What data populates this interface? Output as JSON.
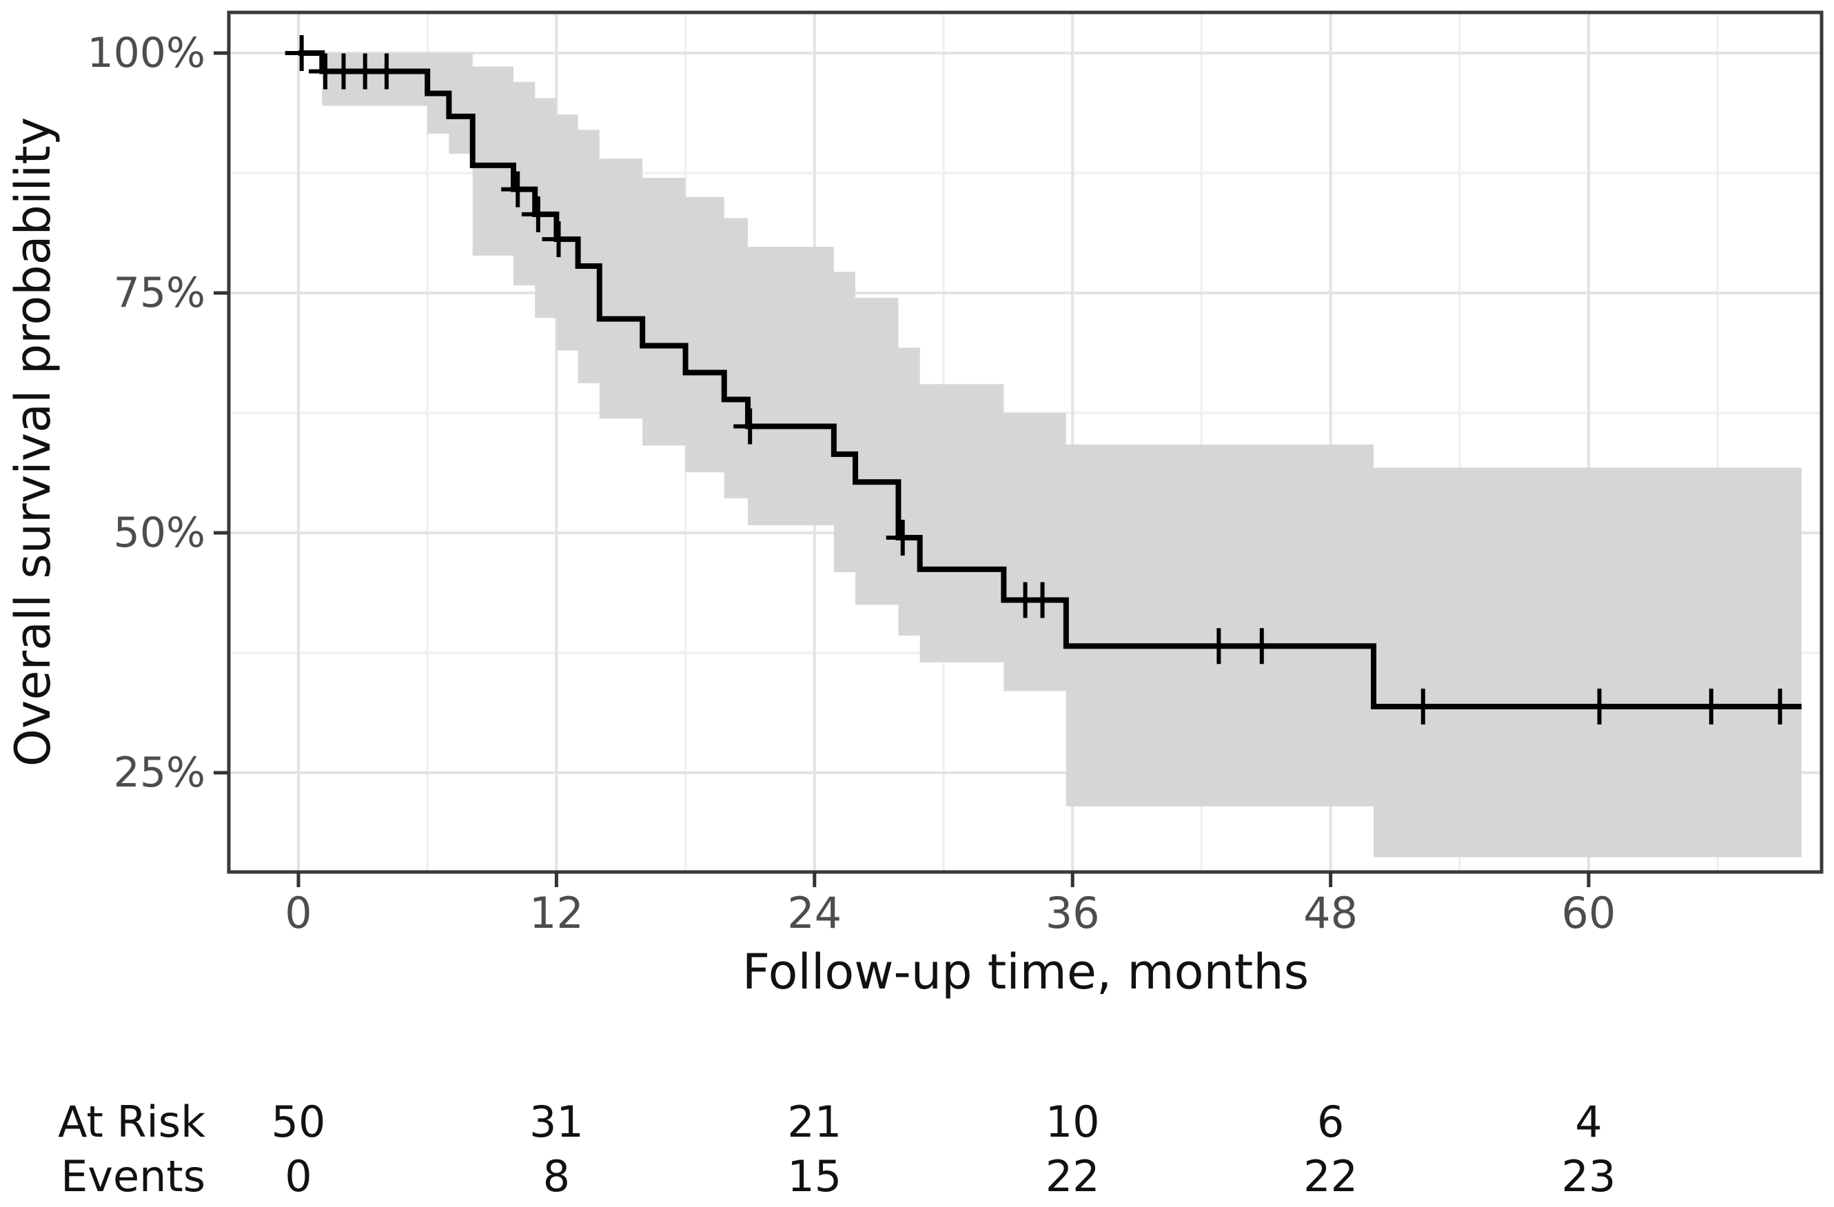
{
  "chart_data": {
    "type": "line",
    "subtype": "kaplan-meier-step",
    "title": "",
    "xlabel": "Follow-up time, months",
    "ylabel": "Overall survival probability",
    "x_axis": {
      "ticks": [
        0,
        12,
        24,
        36,
        48,
        60
      ],
      "tick_labels": [
        "0",
        "12",
        "24",
        "36",
        "48",
        "60"
      ],
      "minor_ticks": [
        6,
        18,
        30,
        42,
        54,
        66
      ],
      "range": [
        -3.2,
        70.8
      ]
    },
    "y_axis": {
      "ticks": [
        100,
        75,
        50,
        25
      ],
      "tick_labels": [
        "100%",
        "75%",
        "50%",
        "25%"
      ],
      "minor_ticks": [
        87.5,
        62.5,
        37.5
      ],
      "range": [
        14.7,
        104.3
      ],
      "unit": "percent"
    },
    "grid": {
      "major": true,
      "minor": true
    },
    "legend": {
      "visible": false
    },
    "survival_steps": [
      [
        0,
        100
      ],
      [
        1.1,
        98.1
      ],
      [
        6,
        95.8
      ],
      [
        7,
        93.4
      ],
      [
        8.1,
        88.3
      ],
      [
        10,
        85.8
      ],
      [
        11,
        83.2
      ],
      [
        12,
        80.6
      ],
      [
        13,
        77.8
      ],
      [
        14,
        72.3
      ],
      [
        16,
        69.5
      ],
      [
        18,
        66.7
      ],
      [
        19.8,
        63.9
      ],
      [
        20.9,
        61.1
      ],
      [
        24.9,
        58.2
      ],
      [
        25.9,
        55.3
      ],
      [
        27.9,
        49.5
      ],
      [
        28.9,
        46.2
      ],
      [
        32.8,
        43.0
      ],
      [
        35.7,
        38.2
      ],
      [
        50,
        31.9
      ]
    ],
    "curve_end_time": 69.9,
    "censor_marks": [
      [
        0.15,
        100
      ],
      [
        1.25,
        98.1
      ],
      [
        2.1,
        98.1
      ],
      [
        3.1,
        98.1
      ],
      [
        4.1,
        98.1
      ],
      [
        10.2,
        85.8
      ],
      [
        11.15,
        83.2
      ],
      [
        12.1,
        80.6
      ],
      [
        21.0,
        61.1
      ],
      [
        28.1,
        49.5
      ],
      [
        33.8,
        43.0
      ],
      [
        34.6,
        43.0
      ],
      [
        42.8,
        38.2
      ],
      [
        44.8,
        38.2
      ],
      [
        52.3,
        31.9
      ],
      [
        60.5,
        31.9
      ],
      [
        65.7,
        31.9
      ],
      [
        68.9,
        31.9
      ]
    ],
    "confidence_band": [
      [
        1.1,
        6.0,
        94.5,
        100
      ],
      [
        6.0,
        7.0,
        91.6,
        100
      ],
      [
        7.0,
        8.1,
        89.5,
        100
      ],
      [
        8.1,
        10.0,
        78.9,
        98.6
      ],
      [
        10.0,
        11.0,
        75.8,
        97.0
      ],
      [
        11.0,
        12.0,
        72.4,
        95.3
      ],
      [
        12.0,
        13.0,
        69.0,
        93.6
      ],
      [
        13.0,
        14.0,
        65.6,
        92.0
      ],
      [
        14.0,
        16.0,
        61.9,
        89.0
      ],
      [
        16.0,
        18.0,
        59.1,
        87.0
      ],
      [
        18.0,
        19.8,
        56.3,
        85.0
      ],
      [
        19.8,
        20.9,
        53.6,
        82.8
      ],
      [
        20.9,
        24.9,
        50.8,
        79.8
      ],
      [
        24.9,
        25.9,
        45.9,
        77.2
      ],
      [
        25.9,
        27.9,
        42.5,
        74.5
      ],
      [
        27.9,
        28.9,
        39.3,
        69.3
      ],
      [
        28.9,
        32.8,
        36.5,
        65.5
      ],
      [
        32.8,
        35.7,
        33.5,
        62.5
      ],
      [
        35.7,
        50.0,
        21.5,
        59.2
      ],
      [
        50.0,
        69.9,
        16.2,
        56.8
      ]
    ],
    "risk_table": {
      "time_points": [
        0,
        12,
        24,
        36,
        48,
        60
      ],
      "rows": [
        {
          "label": "At Risk",
          "values": [
            "50",
            "31",
            "21",
            "10",
            "6",
            "4"
          ]
        },
        {
          "label": "Events",
          "values": [
            "0",
            "8",
            "15",
            "22",
            "22",
            "23"
          ]
        }
      ]
    },
    "colors": {
      "curve": "#000000",
      "confidence_band": "#d6d6d6",
      "grid_major": "#e3e3e3",
      "grid_minor": "#f0f0f0",
      "panel_border": "#3a3a3a",
      "tick_mark": "#333333",
      "tick_label": "#4d4d4d",
      "axis_title": "#111111",
      "table_text": "#111111",
      "background": "#ffffff"
    }
  }
}
